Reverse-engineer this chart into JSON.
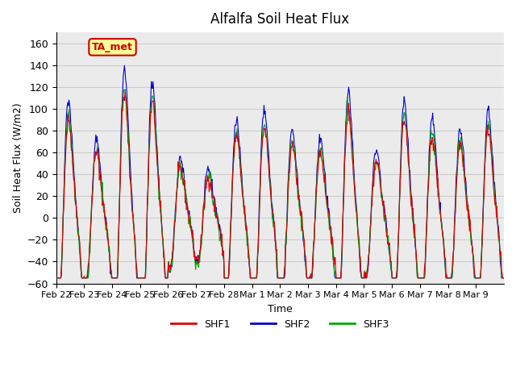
{
  "title": "Alfalfa Soil Heat Flux",
  "ylabel": "Soil Heat Flux (W/m2)",
  "xlabel": "Time",
  "ylim": [
    -60,
    170
  ],
  "yticks": [
    -60,
    -40,
    -20,
    0,
    20,
    40,
    60,
    80,
    100,
    120,
    140,
    160
  ],
  "x_tick_labels": [
    "Feb 22",
    "Feb 23",
    "Feb 24",
    "Feb 25",
    "Feb 26",
    "Feb 27",
    "Feb 28",
    "Mar 1",
    "Mar 2",
    "Mar 3",
    "Mar 4",
    "Mar 5",
    "Mar 6",
    "Mar 7",
    "Mar 8",
    "Mar 9"
  ],
  "num_days": 16,
  "bg_color": "#ffffff",
  "grid_color": "#cccccc",
  "shf1_color": "#dd0000",
  "shf2_color": "#0000cc",
  "shf3_color": "#00aa00",
  "annotation_text": "TA_met",
  "annotation_bg": "#ffff99",
  "annotation_edge": "#cc0000",
  "annotation_text_color": "#cc0000",
  "legend_labels": [
    "SHF1",
    "SHF2",
    "SHF3"
  ]
}
